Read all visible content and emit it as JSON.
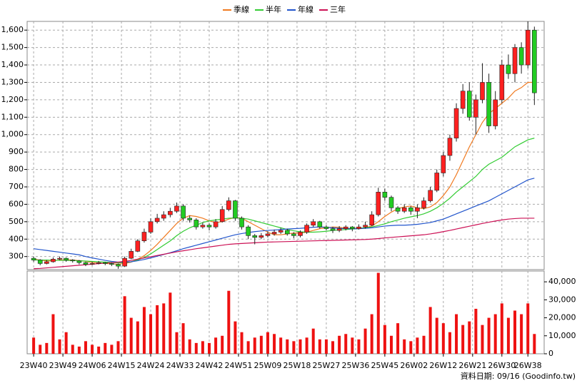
{
  "chart_data": [
    {
      "type": "candlestick",
      "x": [
        0,
        2,
        4,
        6,
        8,
        10,
        12,
        14,
        16,
        18,
        20,
        22,
        24,
        26,
        28,
        30,
        32,
        34,
        36,
        38,
        40,
        42,
        44,
        46,
        48,
        50,
        52,
        54,
        56,
        58,
        60,
        62,
        64,
        66,
        68,
        70,
        72,
        74,
        76,
        78,
        80,
        82,
        84,
        86,
        88,
        90,
        92,
        94,
        96,
        98,
        100,
        102,
        104,
        106,
        108,
        110,
        112,
        114,
        116,
        118,
        120,
        122,
        124,
        126,
        128,
        130,
        132,
        134,
        136,
        138,
        140,
        142,
        144,
        146,
        148,
        150,
        152,
        154
      ],
      "open": [
        290,
        280,
        260,
        270,
        285,
        290,
        280,
        275,
        265,
        255,
        260,
        265,
        260,
        255,
        245,
        290,
        330,
        390,
        440,
        500,
        520,
        540,
        560,
        590,
        520,
        510,
        470,
        480,
        470,
        500,
        570,
        620,
        520,
        470,
        420,
        410,
        420,
        430,
        440,
        450,
        430,
        420,
        440,
        480,
        500,
        470,
        460,
        450,
        460,
        470,
        460,
        470,
        480,
        540,
        670,
        640,
        580,
        560,
        580,
        560,
        580,
        620,
        680,
        780,
        880,
        980,
        1150,
        1250,
        1100,
        1200,
        1300,
        1050,
        1200,
        1400,
        1350,
        1500,
        1400,
        1600
      ],
      "high": [
        300,
        285,
        280,
        295,
        300,
        295,
        285,
        280,
        270,
        270,
        275,
        270,
        265,
        260,
        300,
        345,
        400,
        460,
        520,
        545,
        560,
        580,
        610,
        600,
        535,
        520,
        495,
        490,
        515,
        590,
        640,
        625,
        530,
        480,
        430,
        435,
        445,
        455,
        465,
        460,
        440,
        450,
        490,
        515,
        505,
        480,
        470,
        475,
        480,
        475,
        485,
        500,
        560,
        695,
        690,
        650,
        590,
        600,
        590,
        600,
        640,
        700,
        800,
        900,
        1000,
        1180,
        1290,
        1300,
        1230,
        1410,
        1350,
        1250,
        1430,
        1460,
        1520,
        1530,
        1650,
        1620
      ],
      "low": [
        270,
        250,
        255,
        265,
        280,
        270,
        265,
        255,
        245,
        250,
        255,
        250,
        245,
        230,
        240,
        285,
        325,
        380,
        430,
        490,
        505,
        525,
        550,
        505,
        495,
        455,
        460,
        450,
        460,
        495,
        560,
        505,
        455,
        400,
        370,
        400,
        410,
        420,
        430,
        420,
        405,
        410,
        430,
        470,
        460,
        450,
        435,
        440,
        450,
        445,
        455,
        460,
        475,
        530,
        620,
        560,
        545,
        550,
        540,
        520,
        570,
        610,
        670,
        760,
        850,
        960,
        1120,
        1080,
        1000,
        1180,
        1010,
        1030,
        1180,
        1320,
        1300,
        1350,
        1380,
        1170
      ],
      "close": [
        280,
        260,
        270,
        285,
        290,
        280,
        275,
        265,
        255,
        260,
        265,
        260,
        255,
        245,
        290,
        330,
        390,
        440,
        500,
        520,
        540,
        560,
        590,
        520,
        510,
        470,
        480,
        470,
        500,
        570,
        620,
        520,
        470,
        420,
        410,
        420,
        430,
        440,
        450,
        430,
        420,
        440,
        480,
        500,
        470,
        460,
        450,
        460,
        470,
        460,
        470,
        480,
        540,
        670,
        640,
        580,
        560,
        580,
        560,
        580,
        620,
        680,
        780,
        880,
        980,
        1150,
        1250,
        1100,
        1200,
        1300,
        1050,
        1200,
        1400,
        1350,
        1500,
        1400,
        1600,
        1240
      ],
      "up_color": "#ff2020",
      "down_color": "#22cc22",
      "series": [
        {
          "name": "季線",
          "color": "#f07a20",
          "values": [
            285,
            280,
            275,
            275,
            280,
            282,
            280,
            277,
            272,
            266,
            262,
            260,
            258,
            256,
            260,
            268,
            285,
            305,
            335,
            370,
            410,
            450,
            490,
            520,
            535,
            530,
            520,
            505,
            495,
            500,
            515,
            525,
            520,
            500,
            480,
            460,
            440,
            425,
            425,
            430,
            435,
            435,
            440,
            450,
            460,
            465,
            470,
            468,
            462,
            460,
            462,
            466,
            475,
            500,
            530,
            555,
            575,
            585,
            590,
            580,
            575,
            585,
            610,
            650,
            700,
            770,
            850,
            930,
            1000,
            1070,
            1120,
            1150,
            1180,
            1210,
            1250,
            1270,
            1300,
            1300
          ]
        },
        {
          "name": "半年",
          "color": "#33cc33",
          "values": [
            280,
            280,
            280,
            279,
            278,
            278,
            277,
            276,
            274,
            272,
            270,
            268,
            266,
            264,
            265,
            270,
            280,
            295,
            315,
            340,
            365,
            390,
            420,
            445,
            465,
            480,
            495,
            505,
            510,
            515,
            520,
            522,
            520,
            515,
            505,
            495,
            485,
            475,
            465,
            455,
            448,
            442,
            440,
            440,
            442,
            445,
            450,
            452,
            455,
            458,
            460,
            465,
            470,
            478,
            488,
            500,
            510,
            520,
            528,
            535,
            545,
            560,
            580,
            605,
            635,
            670,
            700,
            730,
            760,
            800,
            830,
            850,
            870,
            900,
            930,
            950,
            970,
            980
          ]
        },
        {
          "name": "年線",
          "color": "#2255cc",
          "values": [
            345,
            340,
            335,
            330,
            325,
            320,
            315,
            310,
            300,
            292,
            285,
            278,
            272,
            268,
            268,
            270,
            276,
            283,
            292,
            302,
            312,
            322,
            333,
            345,
            355,
            365,
            375,
            385,
            395,
            405,
            415,
            425,
            432,
            438,
            443,
            447,
            450,
            452,
            455,
            458,
            460,
            462,
            465,
            468,
            470,
            468,
            465,
            462,
            460,
            460,
            460,
            462,
            465,
            470,
            475,
            478,
            480,
            480,
            482,
            485,
            490,
            495,
            505,
            515,
            530,
            545,
            560,
            575,
            590,
            605,
            620,
            640,
            660,
            680,
            700,
            720,
            740,
            750
          ]
        },
        {
          "name": "三年",
          "color": "#cc1155",
          "values": [
            230,
            232,
            235,
            238,
            241,
            244,
            247,
            250,
            253,
            256,
            259,
            262,
            265,
            268,
            272,
            278,
            285,
            292,
            299,
            306,
            313,
            320,
            327,
            333,
            339,
            345,
            350,
            355,
            360,
            365,
            370,
            373,
            375,
            377,
            379,
            381,
            383,
            384,
            385,
            386,
            387,
            388,
            389,
            390,
            391,
            392,
            393,
            394,
            395,
            396,
            397,
            398,
            400,
            403,
            407,
            410,
            413,
            416,
            419,
            422,
            425,
            430,
            436,
            443,
            450,
            458,
            466,
            474,
            482,
            490,
            497,
            504,
            510,
            515,
            518,
            520,
            520,
            520
          ]
        }
      ],
      "xlim": [
        -2,
        157
      ],
      "xticks": [
        {
          "value": 0,
          "label": "23W40"
        },
        {
          "value": 9,
          "label": "23W49"
        },
        {
          "value": 18,
          "label": "24W06"
        },
        {
          "value": 27,
          "label": "24W15"
        },
        {
          "value": 36,
          "label": "24W24"
        },
        {
          "value": 45,
          "label": "24W33"
        },
        {
          "value": 54,
          "label": "24W42"
        },
        {
          "value": 63,
          "label": "24W51"
        },
        {
          "value": 72,
          "label": "25W09"
        },
        {
          "value": 81,
          "label": "25W18"
        },
        {
          "value": 90,
          "label": "25W27"
        },
        {
          "value": 99,
          "label": "25W36"
        },
        {
          "value": 108,
          "label": "25W45"
        },
        {
          "value": 117,
          "label": "26W02"
        },
        {
          "value": 126,
          "label": "26W12"
        },
        {
          "value": 135,
          "label": "26W21"
        },
        {
          "value": 144,
          "label": "26W30"
        },
        {
          "value": 152,
          "label": "26W38"
        }
      ],
      "ylim": [
        225,
        1650
      ],
      "yticks": [
        300,
        400,
        500,
        600,
        700,
        800,
        900,
        {
          "value": 1000,
          "label": "1,000"
        },
        {
          "value": 1100,
          "label": "1,100"
        },
        {
          "value": 1200,
          "label": "1,200"
        },
        {
          "value": 1300,
          "label": "1,300"
        },
        {
          "value": 1400,
          "label": "1,400"
        },
        {
          "value": 1500,
          "label": "1,500"
        },
        {
          "value": 1600,
          "label": "1,600"
        }
      ],
      "grid": true
    },
    {
      "type": "bar",
      "values": [
        9000,
        5000,
        6000,
        22000,
        8000,
        12000,
        5000,
        4000,
        7000,
        5000,
        4000,
        6000,
        5000,
        7000,
        32000,
        20000,
        18000,
        26000,
        22000,
        27000,
        28000,
        34000,
        12000,
        17000,
        8000,
        6000,
        7000,
        6000,
        9000,
        10000,
        35000,
        18000,
        12000,
        7000,
        9000,
        10000,
        12000,
        11000,
        9000,
        8000,
        7000,
        8000,
        9000,
        14000,
        8000,
        8000,
        7000,
        10000,
        11000,
        9000,
        8000,
        14000,
        22000,
        45000,
        16000,
        10000,
        17000,
        8000,
        7000,
        9000,
        10000,
        26000,
        20000,
        17000,
        12000,
        22000,
        16000,
        18000,
        25000,
        16000,
        20000,
        22000,
        28000,
        20000,
        24000,
        22000,
        28000,
        11000
      ],
      "color": "#ee1111",
      "ylim": [
        0,
        46000
      ],
      "yticks": [
        0,
        {
          "value": 10000,
          "label": "10,000"
        },
        {
          "value": 20000,
          "label": "20,000"
        },
        {
          "value": 30000,
          "label": "30,000"
        },
        {
          "value": 40000,
          "label": "40,000"
        }
      ]
    }
  ],
  "note": "資料日期: 09/16 (Goodinfo.tw)"
}
